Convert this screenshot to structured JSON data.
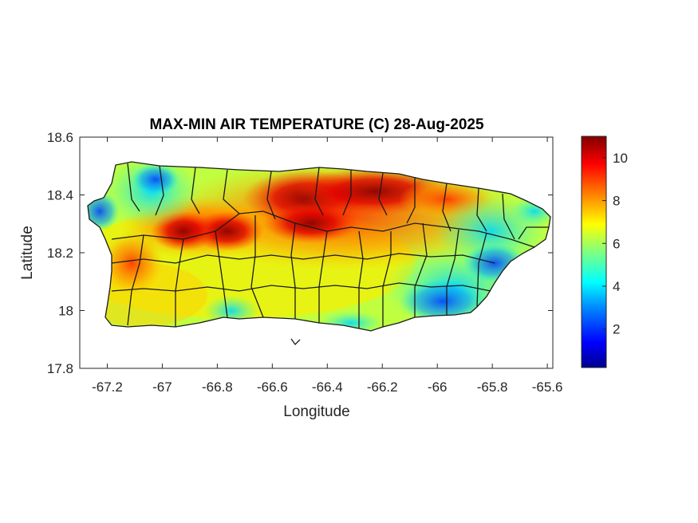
{
  "map": {
    "title": "MAX-MIN AIR TEMPERATURE (C) 28-Aug-2025",
    "xlabel": "Longitude",
    "ylabel": "Latitude",
    "xlim": [
      -67.3,
      -65.58
    ],
    "ylim": [
      17.8,
      18.6
    ],
    "xticks": [
      -67.2,
      -67,
      -66.8,
      -66.6,
      -66.4,
      -66.2,
      -66,
      -65.8,
      -65.6
    ],
    "xtick_labels": [
      "-67.2",
      "-67",
      "-66.8",
      "-66.6",
      "-66.4",
      "-66.2",
      "-66",
      "-65.8",
      "-65.6"
    ],
    "yticks": [
      17.8,
      18,
      18.2,
      18.4,
      18.6
    ],
    "ytick_labels": [
      "17.8",
      "18",
      "18.2",
      "18.4",
      "18.6"
    ],
    "colormap": "jet",
    "land_outline_color": "#000000",
    "colorbar": {
      "range": [
        0.2,
        11
      ],
      "ticks": [
        2,
        4,
        6,
        8,
        10
      ],
      "tick_labels": [
        "2",
        "4",
        "6",
        "8",
        "10"
      ],
      "colors": [
        "#00008f",
        "#0000ff",
        "#0080ff",
        "#00ffff",
        "#80ff80",
        "#ffff00",
        "#ff8000",
        "#ff0000",
        "#800000"
      ]
    }
  },
  "chart_data": {
    "type": "heatmap",
    "title": "MAX-MIN AIR TEMPERATURE (C) 28-Aug-2025",
    "xlabel": "Longitude",
    "ylabel": "Latitude",
    "xlim": [
      -67.3,
      -65.58
    ],
    "ylim": [
      17.8,
      18.6
    ],
    "value_range": [
      0.2,
      11
    ],
    "grid": false,
    "hotspots": [
      {
        "lon": -66.55,
        "lat": 18.37,
        "value": 10.2
      },
      {
        "lon": -66.2,
        "lat": 18.42,
        "value": 10.5
      },
      {
        "lon": -66.42,
        "lat": 18.32,
        "value": 9.6
      },
      {
        "lon": -66.95,
        "lat": 18.28,
        "value": 8.8
      },
      {
        "lon": -67.15,
        "lat": 18.2,
        "value": 8.0
      },
      {
        "lon": -66.0,
        "lat": 18.38,
        "value": 8.6
      },
      {
        "lon": -66.0,
        "lat": 18.05,
        "value": 3.0
      },
      {
        "lon": -65.85,
        "lat": 18.1,
        "value": 3.5
      },
      {
        "lon": -67.12,
        "lat": 18.45,
        "value": 4.2
      },
      {
        "lon": -66.8,
        "lat": 17.96,
        "value": 4.5
      }
    ]
  }
}
